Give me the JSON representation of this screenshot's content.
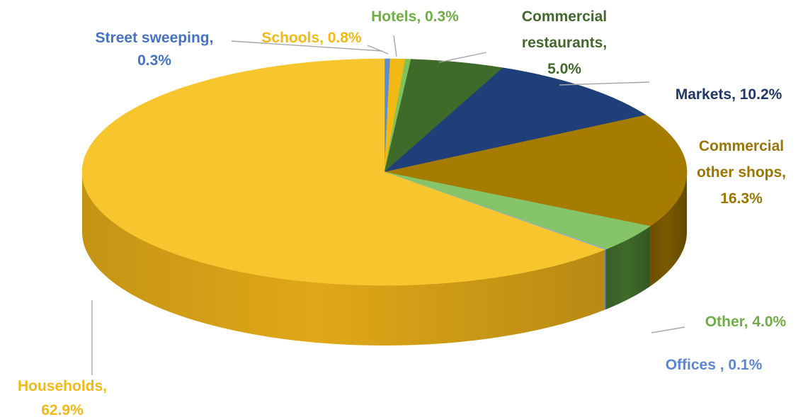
{
  "chart_data": {
    "type": "pie",
    "title": "",
    "style": "3d",
    "legend": "none",
    "slices": [
      {
        "name": "Street sweeping",
        "value": 0.3,
        "label_lines": [
          "Street sweeping,",
          "0.3%"
        ],
        "color": "#5b8fd1",
        "text_color": "#4472c4",
        "side_color": "#3d6aa6"
      },
      {
        "name": "Schools",
        "value": 0.8,
        "label_lines": [
          "Schools, 0.8%"
        ],
        "color": "#f2b814",
        "text_color": "#f2b814",
        "side_color": "#b88a0b"
      },
      {
        "name": "Hotels",
        "value": 0.3,
        "label_lines": [
          "Hotels, 0.3%"
        ],
        "color": "#7fc25a",
        "text_color": "#70ad47",
        "side_color": "#5a9440"
      },
      {
        "name": "Commercial restaurants",
        "value": 5.0,
        "label_lines": [
          "Commercial",
          "restaurants,",
          "5.0%"
        ],
        "color": "#3f6b2a",
        "text_color": "#43682b",
        "side_color": "#2c4d1d"
      },
      {
        "name": "Markets",
        "value": 10.2,
        "label_lines": [
          "Markets, 10.2%"
        ],
        "color": "#1f3f7a",
        "text_color": "#1f3864",
        "side_color": "#142a54"
      },
      {
        "name": "Commercial other shops",
        "value": 16.3,
        "label_lines": [
          "Commercial",
          "other shops,",
          "16.3%"
        ],
        "color": "#a67c00",
        "text_color": "#9c7400",
        "side_color": "#7a5a00"
      },
      {
        "name": "Other",
        "value": 4.0,
        "label_lines": [
          "Other, 4.0%"
        ],
        "color": "#86c46a",
        "text_color": "#70ad47",
        "side_color": "#3f6b2a"
      },
      {
        "name": "Offices",
        "value": 0.1,
        "label_lines": [
          "Offices , 0.1%"
        ],
        "color": "#8faadc",
        "text_color": "#5b86d6",
        "side_color": "#6a86bd"
      },
      {
        "name": "Households",
        "value": 62.9,
        "label_lines": [
          "Households,",
          "62.9%"
        ],
        "color": "#f7c62f",
        "text_color": "#f2b814",
        "side_color": "#e0a818"
      }
    ]
  }
}
